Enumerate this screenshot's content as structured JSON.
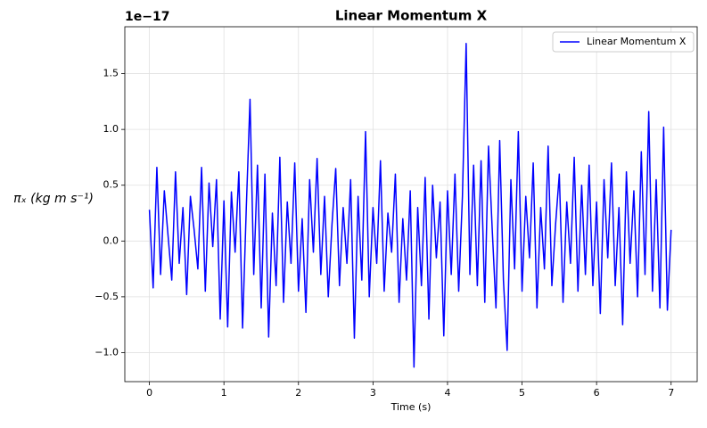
{
  "chart_data": {
    "type": "line",
    "title": "Linear Momentum X",
    "offset_text": "1e−17",
    "xlabel": "Time (s)",
    "ylabel": "πₓ (kg m s⁻¹)",
    "x": [
      0,
      0.05,
      0.1,
      0.15,
      0.2,
      0.25,
      0.3,
      0.35,
      0.4,
      0.45,
      0.5,
      0.55,
      0.6,
      0.65,
      0.7,
      0.75,
      0.8,
      0.85,
      0.9,
      0.95,
      1,
      1.05,
      1.1,
      1.15,
      1.2,
      1.25,
      1.3,
      1.35,
      1.4,
      1.45,
      1.5,
      1.55,
      1.6,
      1.65,
      1.7,
      1.75,
      1.8,
      1.85,
      1.9,
      1.95,
      2,
      2.05,
      2.1,
      2.15,
      2.2,
      2.25,
      2.3,
      2.35,
      2.4,
      2.45,
      2.5,
      2.55,
      2.6,
      2.65,
      2.7,
      2.75,
      2.8,
      2.85,
      2.9,
      2.95,
      3,
      3.05,
      3.1,
      3.15,
      3.2,
      3.25,
      3.3,
      3.35,
      3.4,
      3.45,
      3.5,
      3.55,
      3.6,
      3.65,
      3.7,
      3.75,
      3.8,
      3.85,
      3.9,
      3.95,
      4,
      4.05,
      4.1,
      4.15,
      4.2,
      4.25,
      4.3,
      4.35,
      4.4,
      4.45,
      4.5,
      4.55,
      4.6,
      4.65,
      4.7,
      4.75,
      4.8,
      4.85,
      4.9,
      4.95,
      5,
      5.05,
      5.1,
      5.15,
      5.2,
      5.25,
      5.3,
      5.35,
      5.4,
      5.45,
      5.5,
      5.55,
      5.6,
      5.65,
      5.7,
      5.75,
      5.8,
      5.85,
      5.9,
      5.95,
      6,
      6.05,
      6.1,
      6.15,
      6.2,
      6.25,
      6.3,
      6.35,
      6.4,
      6.45,
      6.5,
      6.55,
      6.6,
      6.65,
      6.7,
      6.75,
      6.8,
      6.85,
      6.9,
      6.95,
      7
    ],
    "series": [
      {
        "name": "Linear Momentum X",
        "color": "#0000ff",
        "values": [
          0.28,
          -0.42,
          0.66,
          -0.3,
          0.45,
          0.05,
          -0.35,
          0.62,
          -0.2,
          0.3,
          -0.48,
          0.4,
          0.1,
          -0.25,
          0.66,
          -0.45,
          0.52,
          -0.05,
          0.55,
          -0.7,
          0.36,
          -0.77,
          0.44,
          -0.1,
          0.62,
          -0.78,
          0.3,
          1.27,
          -0.3,
          0.68,
          -0.6,
          0.6,
          -0.86,
          0.25,
          -0.4,
          0.75,
          -0.55,
          0.35,
          -0.2,
          0.7,
          -0.45,
          0.2,
          -0.64,
          0.55,
          -0.1,
          0.74,
          -0.3,
          0.4,
          -0.5,
          0.15,
          0.65,
          -0.4,
          0.3,
          -0.2,
          0.55,
          -0.87,
          0.4,
          -0.35,
          0.98,
          -0.5,
          0.3,
          -0.2,
          0.72,
          -0.45,
          0.25,
          -0.1,
          0.6,
          -0.55,
          0.2,
          -0.35,
          0.45,
          -1.13,
          0.3,
          -0.4,
          0.57,
          -0.7,
          0.5,
          -0.15,
          0.35,
          -0.85,
          0.45,
          -0.3,
          0.6,
          -0.45,
          0.4,
          1.77,
          -0.3,
          0.68,
          -0.4,
          0.72,
          -0.55,
          0.85,
          0.1,
          -0.6,
          0.9,
          -0.35,
          -0.98,
          0.55,
          -0.25,
          0.98,
          -0.45,
          0.4,
          -0.15,
          0.7,
          -0.6,
          0.3,
          -0.25,
          0.85,
          -0.4,
          0.15,
          0.6,
          -0.55,
          0.35,
          -0.2,
          0.75,
          -0.45,
          0.5,
          -0.3,
          0.68,
          -0.4,
          0.35,
          -0.65,
          0.55,
          -0.15,
          0.7,
          -0.4,
          0.3,
          -0.75,
          0.62,
          -0.2,
          0.45,
          -0.5,
          0.8,
          -0.3,
          1.16,
          -0.45,
          0.55,
          -0.6,
          1.02,
          -0.62,
          0.1
        ]
      }
    ],
    "xlim": [
      -0.33,
      7.35
    ],
    "ylim": [
      -1.26,
      1.92
    ],
    "xticks": [
      0,
      1,
      2,
      3,
      4,
      5,
      6,
      7
    ],
    "yticks": [
      {
        "value": -1,
        "label": "−1.0"
      },
      {
        "value": -0.5,
        "label": "−0.5"
      },
      {
        "value": 0,
        "label": "0.0"
      },
      {
        "value": 0.5,
        "label": "0.5"
      },
      {
        "value": 1,
        "label": "1.0"
      },
      1.5
    ],
    "grid": true,
    "legend": "upper right"
  }
}
